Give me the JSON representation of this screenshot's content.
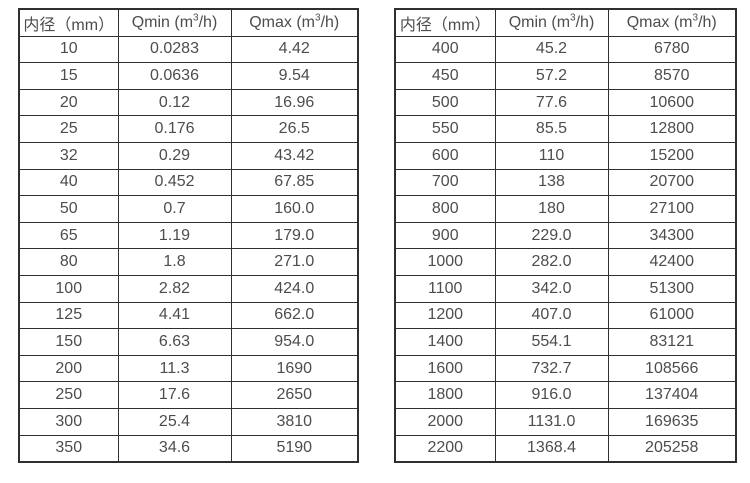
{
  "columns": [
    {
      "pre": "内径（mm）",
      "sup": "",
      "post": ""
    },
    {
      "pre": "Qmin (m",
      "sup": "3",
      "post": "/h)"
    },
    {
      "pre": "Qmax (m",
      "sup": "3",
      "post": "/h)"
    }
  ],
  "colors": {
    "border": "#2f2f2f",
    "text": "#4d4d4d",
    "background": "#ffffff"
  },
  "tables": [
    {
      "name": "small-diameter-flow-table",
      "rows": [
        [
          "10",
          "0.0283",
          "4.42"
        ],
        [
          "15",
          "0.0636",
          "9.54"
        ],
        [
          "20",
          "0.12",
          "16.96"
        ],
        [
          "25",
          "0.176",
          "26.5"
        ],
        [
          "32",
          "0.29",
          "43.42"
        ],
        [
          "40",
          "0.452",
          "67.85"
        ],
        [
          "50",
          "0.7",
          "160.0"
        ],
        [
          "65",
          "1.19",
          "179.0"
        ],
        [
          "80",
          "1.8",
          "271.0"
        ],
        [
          "100",
          "2.82",
          "424.0"
        ],
        [
          "125",
          "4.41",
          "662.0"
        ],
        [
          "150",
          "6.63",
          "954.0"
        ],
        [
          "200",
          "11.3",
          "1690"
        ],
        [
          "250",
          "17.6",
          "2650"
        ],
        [
          "300",
          "25.4",
          "3810"
        ],
        [
          "350",
          "34.6",
          "5190"
        ]
      ]
    },
    {
      "name": "large-diameter-flow-table",
      "rows": [
        [
          "400",
          "45.2",
          "6780"
        ],
        [
          "450",
          "57.2",
          "8570"
        ],
        [
          "500",
          "77.6",
          "10600"
        ],
        [
          "550",
          "85.5",
          "12800"
        ],
        [
          "600",
          "110",
          "15200"
        ],
        [
          "700",
          "138",
          "20700"
        ],
        [
          "800",
          "180",
          "27100"
        ],
        [
          "900",
          "229.0",
          "34300"
        ],
        [
          "1000",
          "282.0",
          "42400"
        ],
        [
          "1100",
          "342.0",
          "51300"
        ],
        [
          "1200",
          "407.0",
          "61000"
        ],
        [
          "1400",
          "554.1",
          "83121"
        ],
        [
          "1600",
          "732.7",
          "108566"
        ],
        [
          "1800",
          "916.0",
          "137404"
        ],
        [
          "2000",
          "1131.0",
          "169635"
        ],
        [
          "2200",
          "1368.4",
          "205258"
        ]
      ]
    }
  ]
}
